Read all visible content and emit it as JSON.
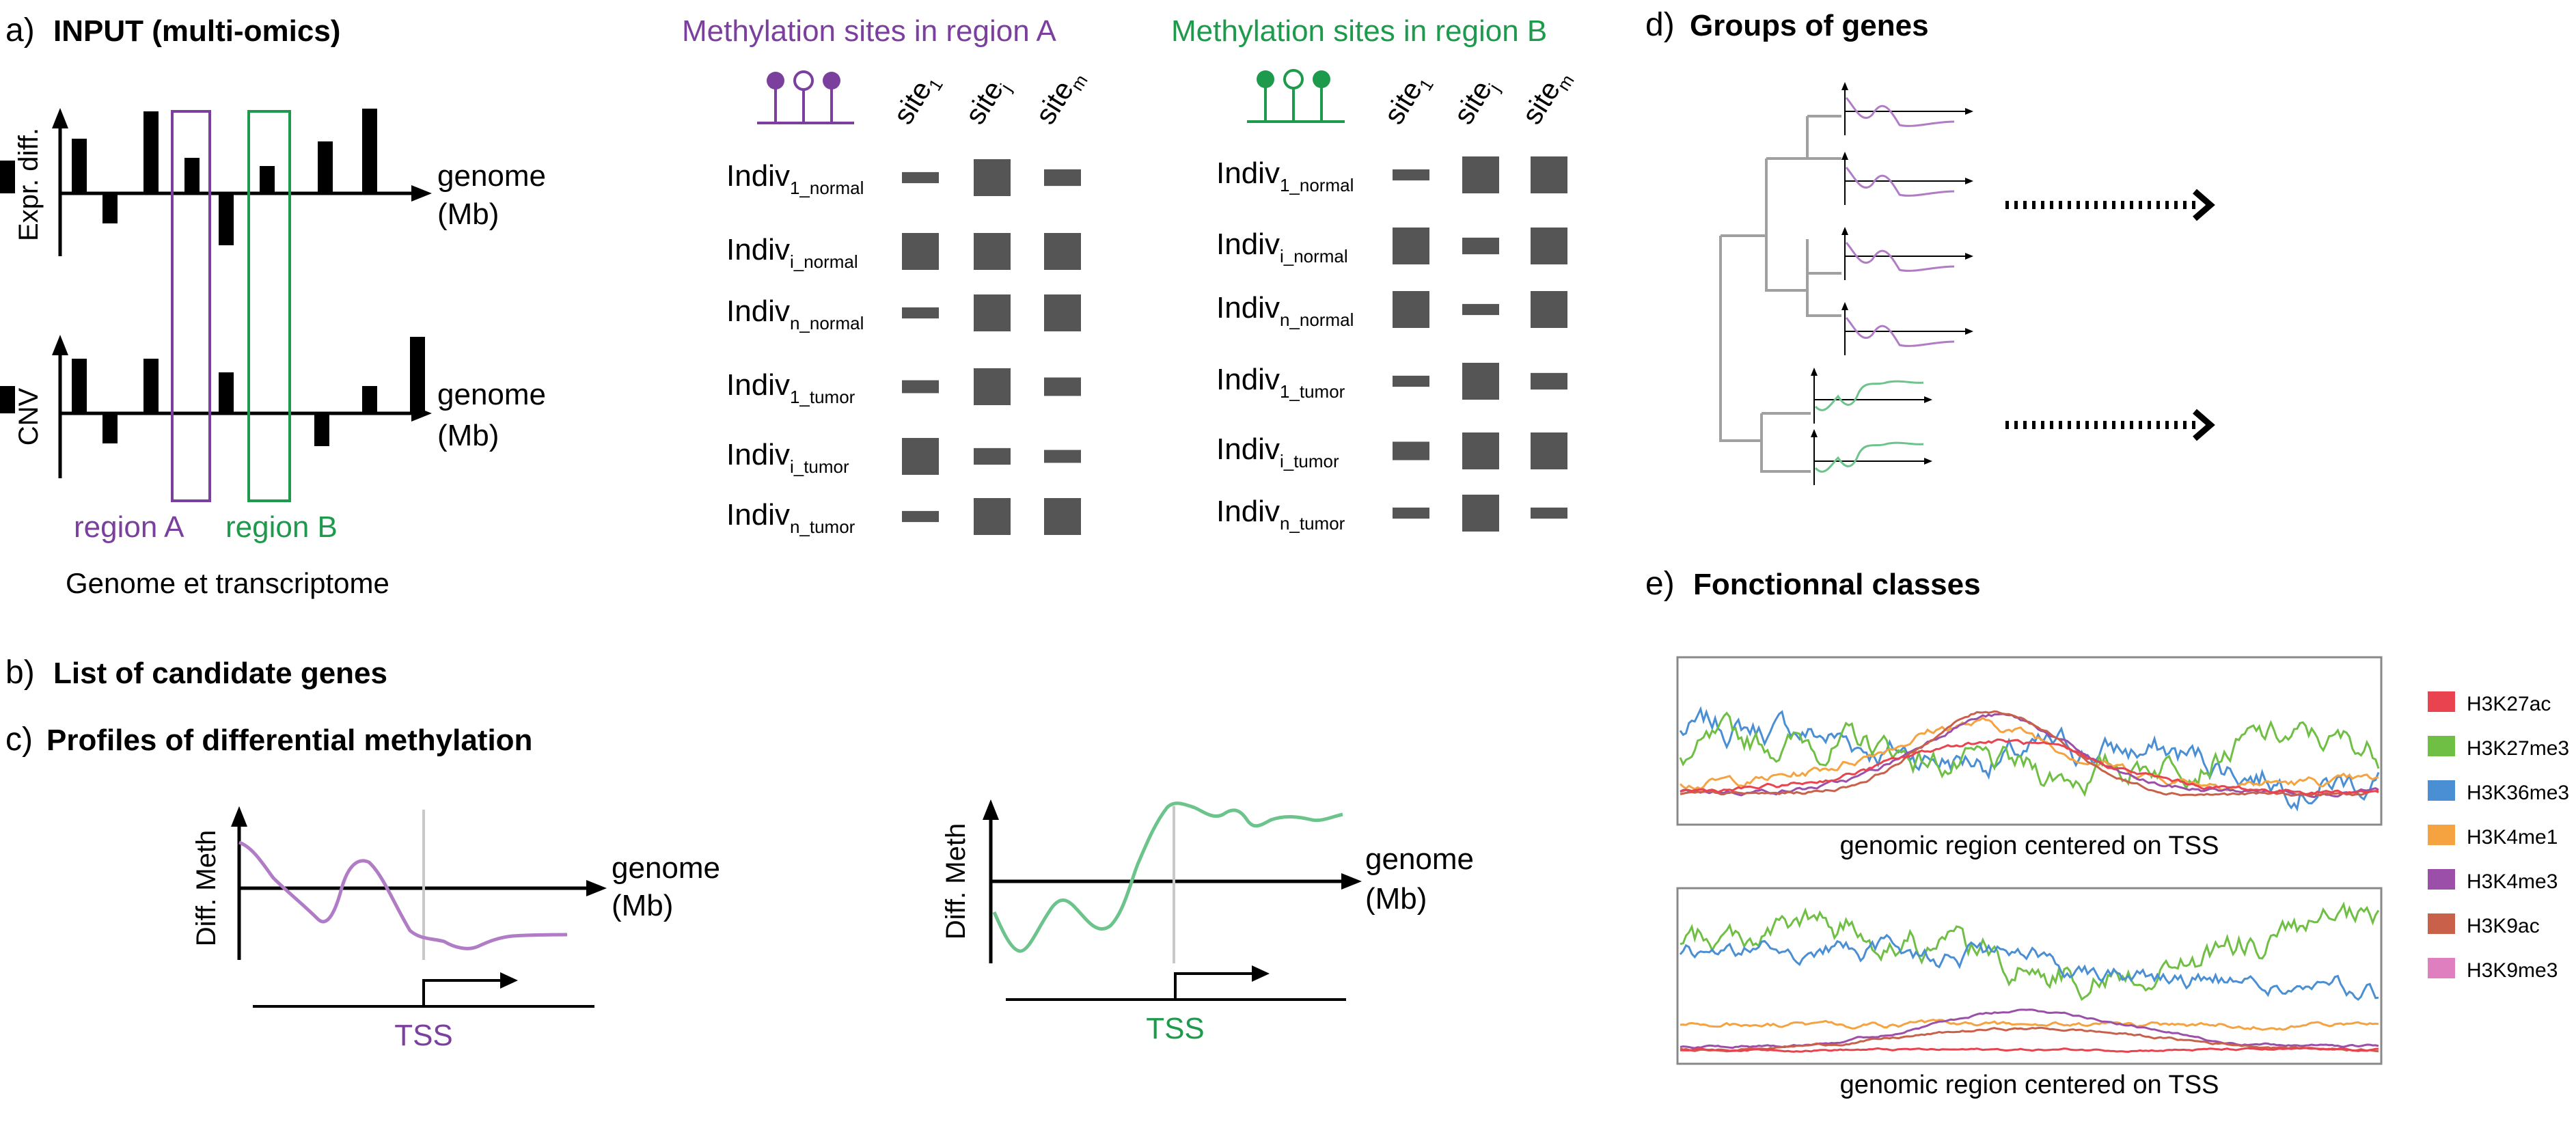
{
  "colors": {
    "purple": "#7b3f9e",
    "purple_light": "#b07cc6",
    "green": "#1e9a4c",
    "green_light": "#6cc48c",
    "bar": "#555555",
    "tree": "#a0a0a0"
  },
  "panel_a": {
    "letter": "a)",
    "title": "INPUT (multi-omics)",
    "expr_axis_label": "Expr. diff.",
    "cnv_axis_label": "CNV",
    "genome_label_1": "genome",
    "genome_label_2": "(Mb)",
    "region_a": "region A",
    "region_b": "region B",
    "caption": "Genome et transcriptome",
    "expr_bars": [
      1,
      -0.55,
      1.5,
      0.65,
      -0.95,
      0.5,
      0.95,
      1.55,
      0.6
    ],
    "cnv_bars": [
      1,
      -0.55,
      1,
      0.75,
      -0.6,
      0.5,
      1.4,
      0.5
    ]
  },
  "methylation": {
    "title_a": "Methylation sites in region A",
    "title_b": "Methylation sites in region B",
    "site_labels": [
      {
        "base": "site",
        "sub": "1"
      },
      {
        "base": "site",
        "sub": "j"
      },
      {
        "base": "site",
        "sub": "m"
      }
    ],
    "rows": [
      {
        "base": "Indiv",
        "sub": "1_normal"
      },
      {
        "base": "Indiv",
        "sub": "i_normal"
      },
      {
        "base": "Indiv",
        "sub": "n_normal"
      },
      {
        "base": "Indiv",
        "sub": "1_tumor"
      },
      {
        "base": "Indiv",
        "sub": "i_tumor"
      },
      {
        "base": "Indiv",
        "sub": "n_tumor"
      }
    ],
    "levels_a": [
      [
        0.3,
        1,
        0.45
      ],
      [
        1,
        1,
        1
      ],
      [
        0.3,
        1,
        1
      ],
      [
        0.35,
        1,
        0.5
      ],
      [
        1,
        0.45,
        0.35
      ],
      [
        0.3,
        1,
        1
      ]
    ],
    "levels_b": [
      [
        0.3,
        1,
        1
      ],
      [
        1,
        0.45,
        1
      ],
      [
        1,
        0.3,
        1
      ],
      [
        0.3,
        1,
        0.45
      ],
      [
        0.5,
        1,
        1
      ],
      [
        0.3,
        1,
        0.3
      ]
    ]
  },
  "panel_b": {
    "letter": "b)",
    "title": "List of candidate genes"
  },
  "panel_c": {
    "letter": "c)",
    "title": "Profiles of differential methylation",
    "ylabel": "Diff. Meth",
    "genome_label_1": "genome",
    "genome_label_2": "(Mb)",
    "tss": "TSS"
  },
  "panel_d": {
    "letter": "d)",
    "title": "Groups of genes"
  },
  "panel_e": {
    "letter": "e)",
    "title": "Fonctionnal classes",
    "xlabel": "genomic region centered on TSS",
    "legend": [
      {
        "name": "H3K27ac",
        "color": "#e8434f"
      },
      {
        "name": "H3K27me3",
        "color": "#6fbf44"
      },
      {
        "name": "H3K36me3",
        "color": "#4a8fd4"
      },
      {
        "name": "H3K4me1",
        "color": "#f4a340"
      },
      {
        "name": "H3K4me3",
        "color": "#9b4fa8"
      },
      {
        "name": "H3K9ac",
        "color": "#c9604a"
      },
      {
        "name": "H3K9me3",
        "color": "#e07fc0"
      }
    ]
  }
}
